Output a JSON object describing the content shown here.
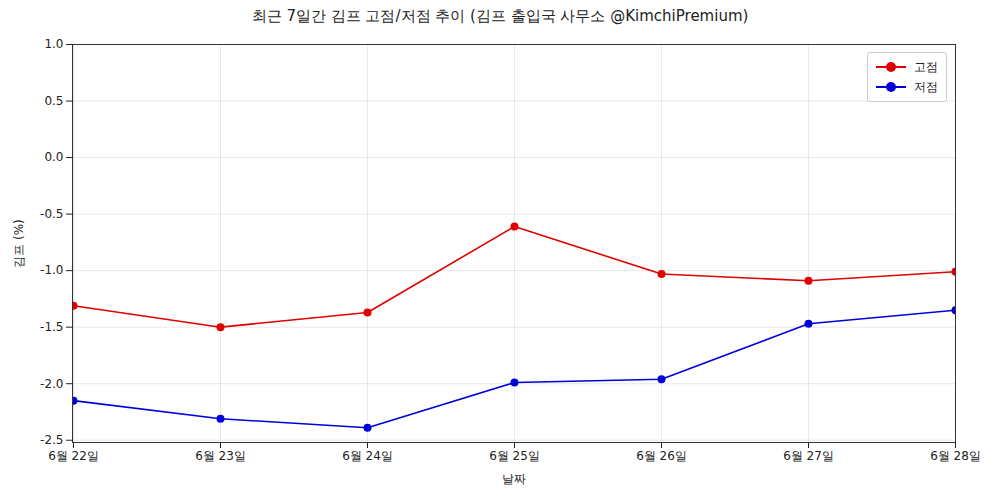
{
  "chart_data": {
    "type": "line",
    "title": "최근 7일간 김프 고점/저점 추이 (김프 출입국 사무소 @KimchiPremium)",
    "x_label": "날짜",
    "y_label": "김프 (%)",
    "categories": [
      "6월 22일",
      "6월 23일",
      "6월 24일",
      "6월 25일",
      "6월 26일",
      "6월 27일",
      "6월 28일"
    ],
    "series": [
      {
        "name": "고점",
        "color": "#e00000",
        "marker": "circle",
        "line_style": "solid",
        "values": [
          -1.31,
          -1.5,
          -1.37,
          -0.61,
          -1.03,
          -1.09,
          -1.01
        ]
      },
      {
        "name": "저점",
        "color": "#0000dd",
        "marker": "circle",
        "line_style": "solid",
        "values": [
          -2.15,
          -2.31,
          -2.39,
          -1.99,
          -1.96,
          -1.47,
          -1.35
        ]
      }
    ],
    "ylim": [
      -2.52,
      1.0
    ],
    "yticks": [
      {
        "value": 1.0,
        "label": "1.0"
      },
      {
        "value": 0.5,
        "label": "0.5"
      },
      {
        "value": 0.0,
        "label": "0.0"
      },
      {
        "value": -0.5,
        "label": "-0.5"
      },
      {
        "value": -1.0,
        "label": "-1.0"
      },
      {
        "value": -1.5,
        "label": "-1.5"
      },
      {
        "value": -2.0,
        "label": "-2.0"
      },
      {
        "value": -2.5,
        "label": "-2.5"
      }
    ],
    "grid": true,
    "legend": "upper right"
  }
}
